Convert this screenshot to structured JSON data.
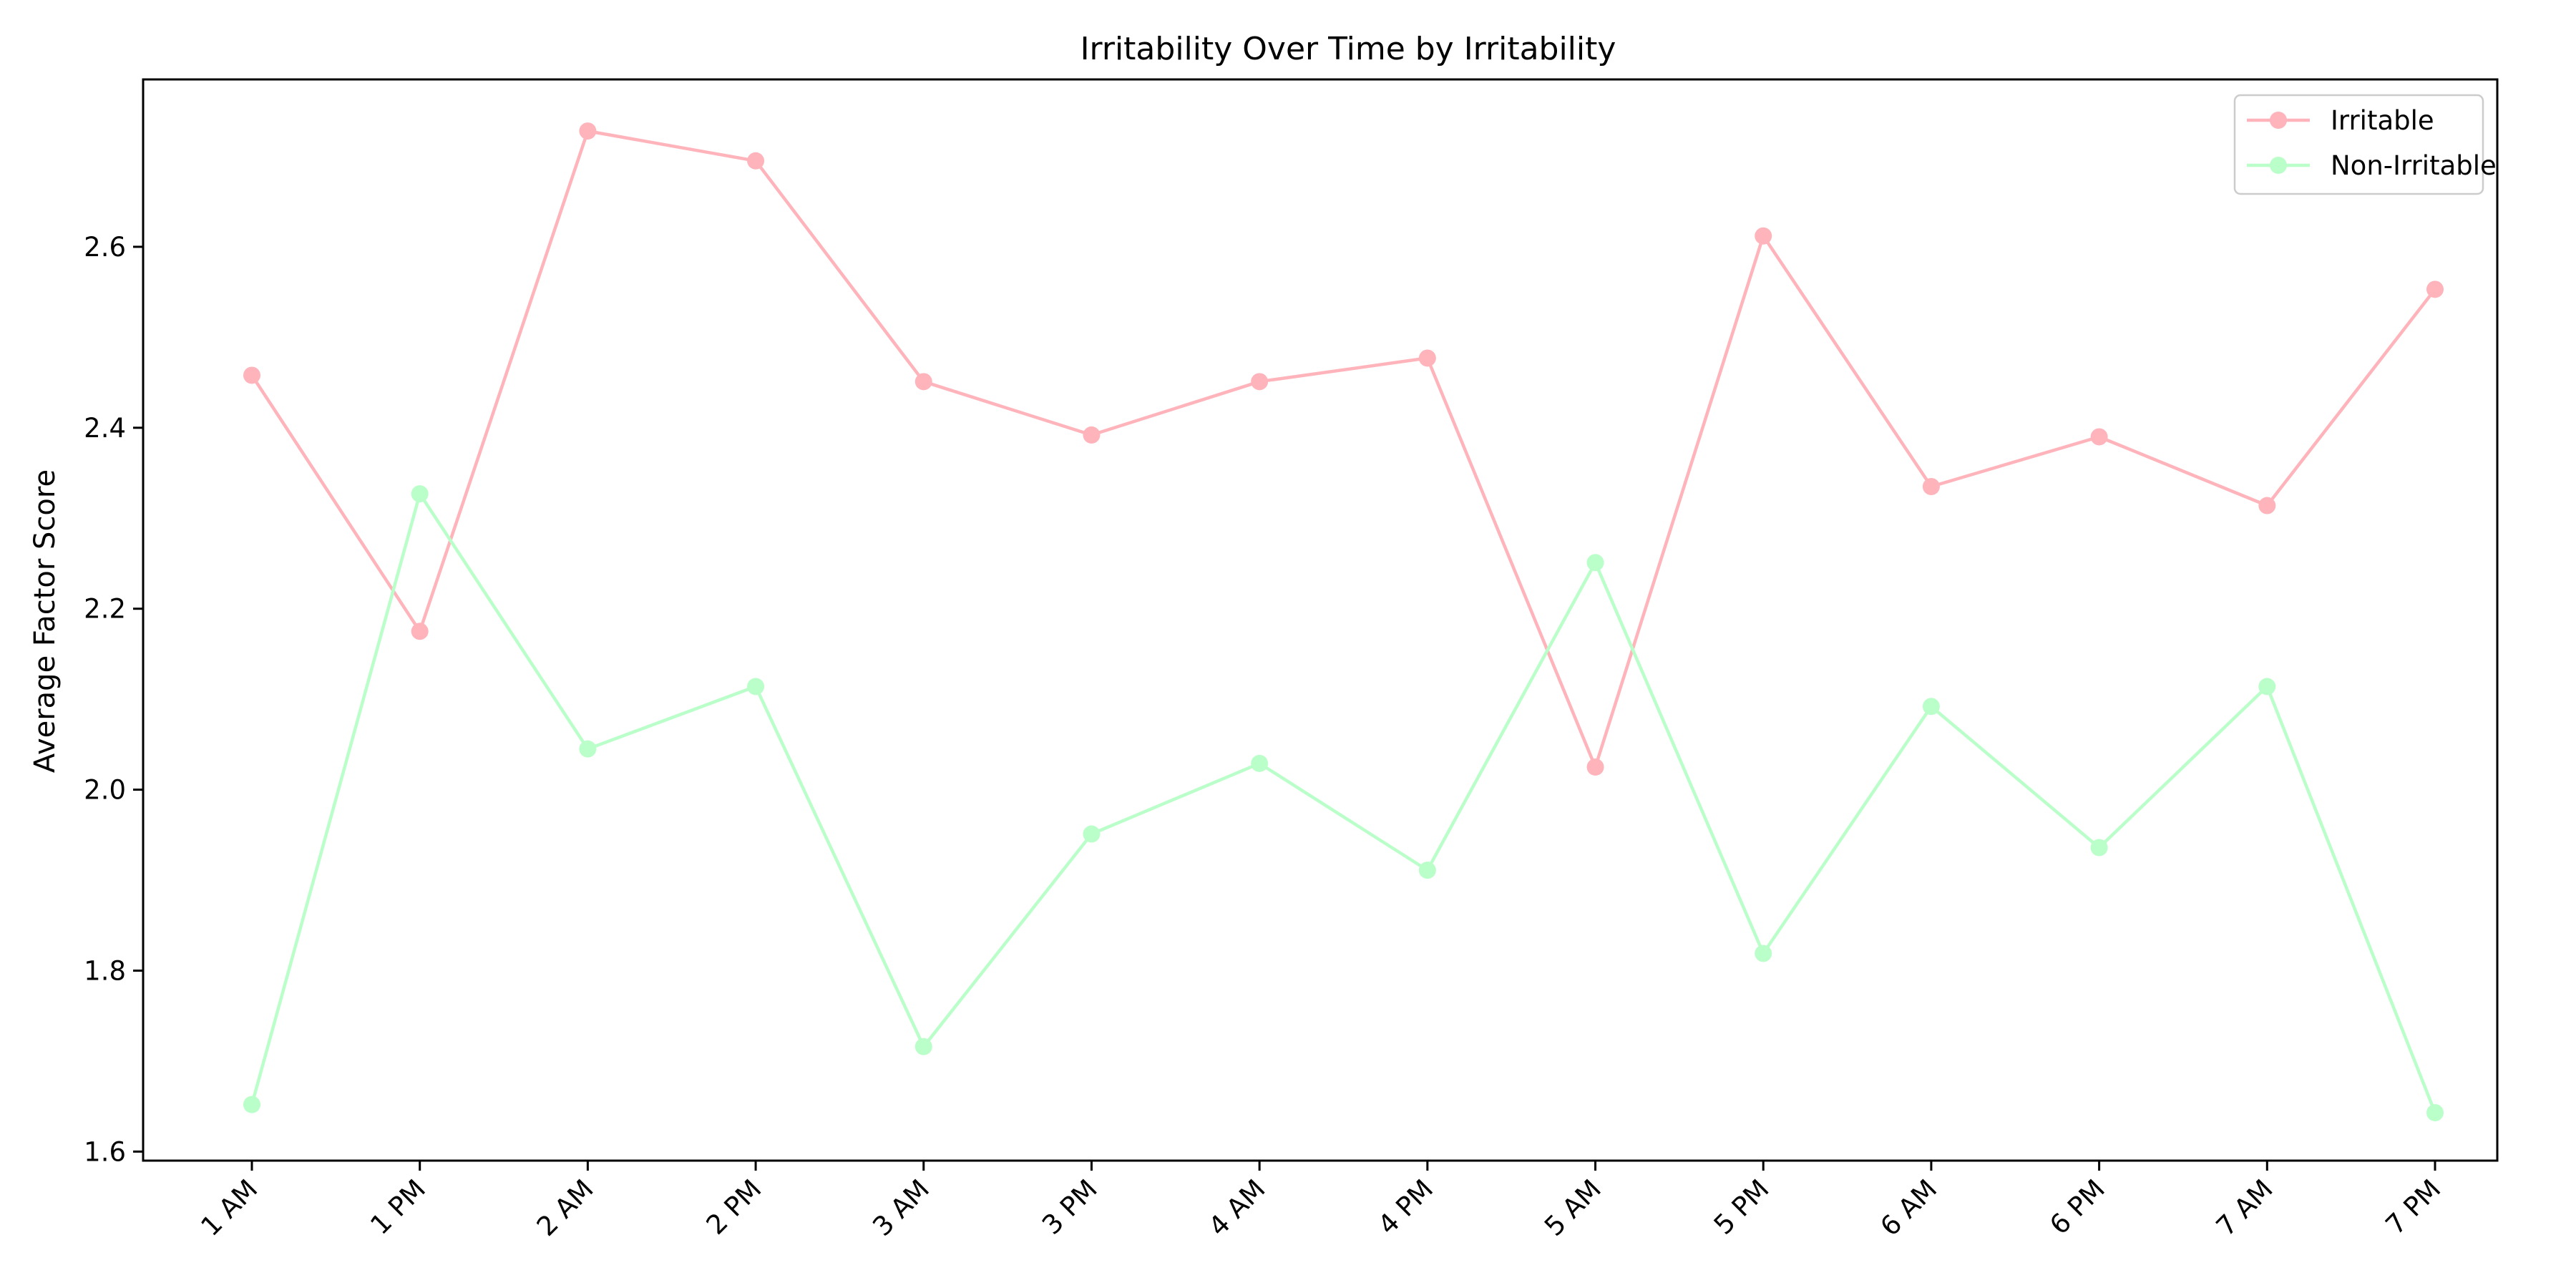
{
  "chart_data": {
    "type": "line",
    "title": "Irritability Over Time by Irritability",
    "xlabel": "",
    "ylabel": "Average Factor Score",
    "categories": [
      "1 AM",
      "1 PM",
      "2 AM",
      "2 PM",
      "3 AM",
      "3 PM",
      "4 AM",
      "4 PM",
      "5 AM",
      "5 PM",
      "6 AM",
      "6 PM",
      "7 AM",
      "7 PM"
    ],
    "ylim": [
      1.59,
      2.785
    ],
    "yticks": [
      1.6,
      1.8,
      2.0,
      2.2,
      2.4,
      2.6
    ],
    "ytick_labels": [
      "1.6",
      "1.8",
      "2.0",
      "2.2",
      "2.4",
      "2.6"
    ],
    "grid": false,
    "legend_position": "top-right",
    "series": [
      {
        "name": "Irritable",
        "color": "#ffb3ba",
        "values": [
          2.458,
          2.175,
          2.728,
          2.695,
          2.451,
          2.392,
          2.451,
          2.477,
          2.025,
          2.612,
          2.335,
          2.39,
          2.314,
          2.553
        ]
      },
      {
        "name": "Non-Irritable",
        "color": "#baffc9",
        "values": [
          1.652,
          2.327,
          2.045,
          2.114,
          1.716,
          1.951,
          2.029,
          1.911,
          2.251,
          1.819,
          2.092,
          1.936,
          2.114,
          1.643
        ]
      }
    ]
  }
}
